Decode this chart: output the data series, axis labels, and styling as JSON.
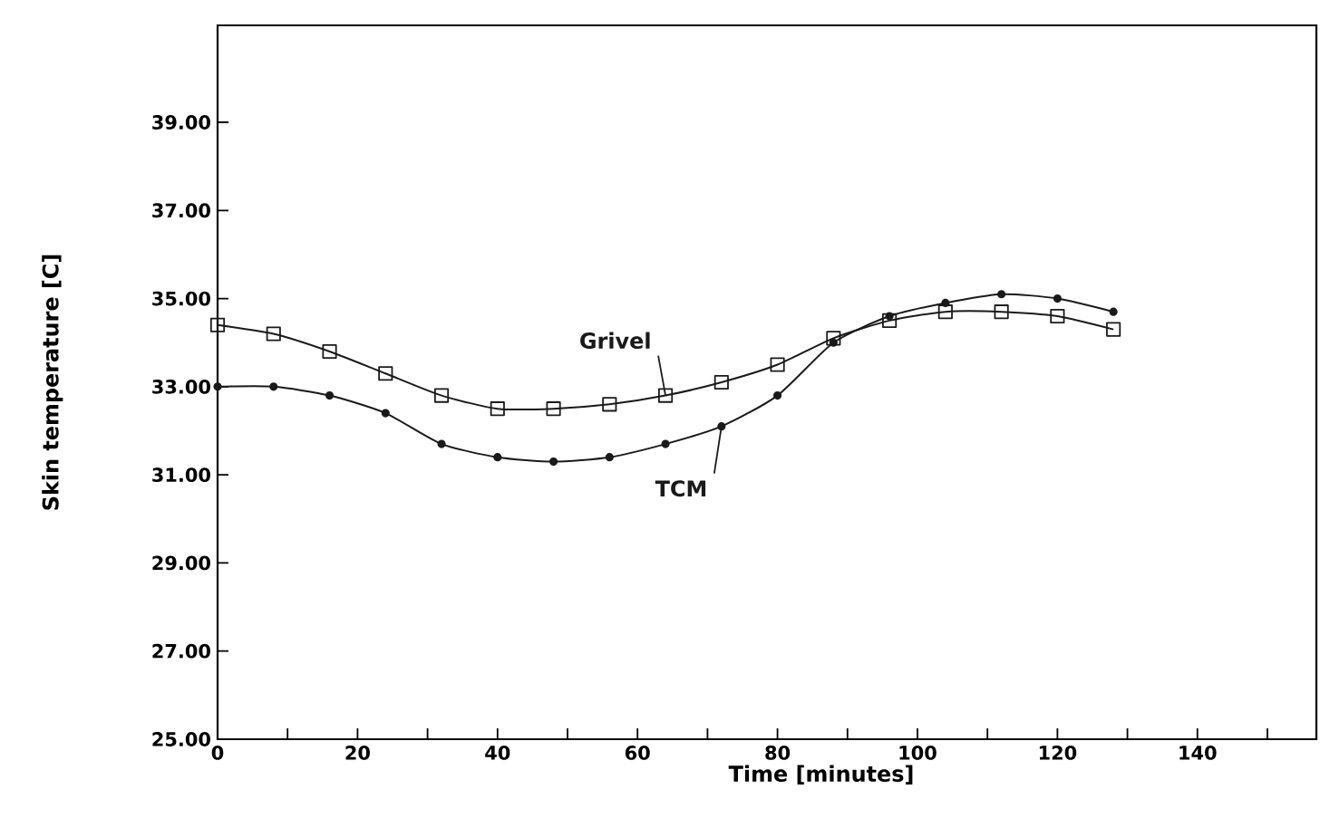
{
  "chart_data": {
    "type": "line",
    "xlabel": "Time  [minutes]",
    "ylabel": "Skin temperature  [C]",
    "x": [
      0,
      8,
      16,
      24,
      32,
      40,
      48,
      56,
      64,
      72,
      80,
      88,
      96,
      104,
      112,
      120,
      128
    ],
    "series": [
      {
        "name": "Grivel",
        "color": "#1a1a1a",
        "marker": "square",
        "values": [
          34.4,
          34.2,
          33.8,
          33.3,
          32.8,
          32.5,
          32.5,
          32.6,
          32.8,
          33.1,
          33.5,
          34.1,
          34.5,
          34.7,
          34.7,
          34.6,
          34.3
        ]
      },
      {
        "name": "TCM",
        "color": "#1a1a1a",
        "marker": "circle",
        "values": [
          33.0,
          33.0,
          32.8,
          32.4,
          31.7,
          31.4,
          31.3,
          31.4,
          31.7,
          32.1,
          32.8,
          34.0,
          34.6,
          34.9,
          35.1,
          35.0,
          34.7
        ]
      }
    ],
    "xlim": [
      0,
      157
    ],
    "ylim": [
      25,
      41.2
    ],
    "xticks": [
      0,
      {
        "value": 10,
        "label": null
      },
      20,
      {
        "value": 30,
        "label": null
      },
      40,
      {
        "value": 50,
        "label": null
      },
      60,
      {
        "value": 70,
        "label": null
      },
      80,
      {
        "value": 90,
        "label": null
      },
      100,
      {
        "value": 110,
        "label": null
      },
      120,
      {
        "value": 130,
        "label": null
      },
      140,
      {
        "value": 150,
        "label": null
      }
    ],
    "yticks": [
      {
        "value": 25,
        "label": "25.00"
      },
      {
        "value": 27,
        "label": "27.00"
      },
      {
        "value": 29,
        "label": "29.00"
      },
      {
        "value": 31,
        "label": "31.00"
      },
      {
        "value": 33,
        "label": "33.00"
      },
      {
        "value": 35,
        "label": "35.00"
      },
      {
        "value": 37,
        "label": "37.00"
      },
      {
        "value": 39,
        "label": "39.00"
      }
    ],
    "grid": false,
    "line_style": "solid"
  }
}
